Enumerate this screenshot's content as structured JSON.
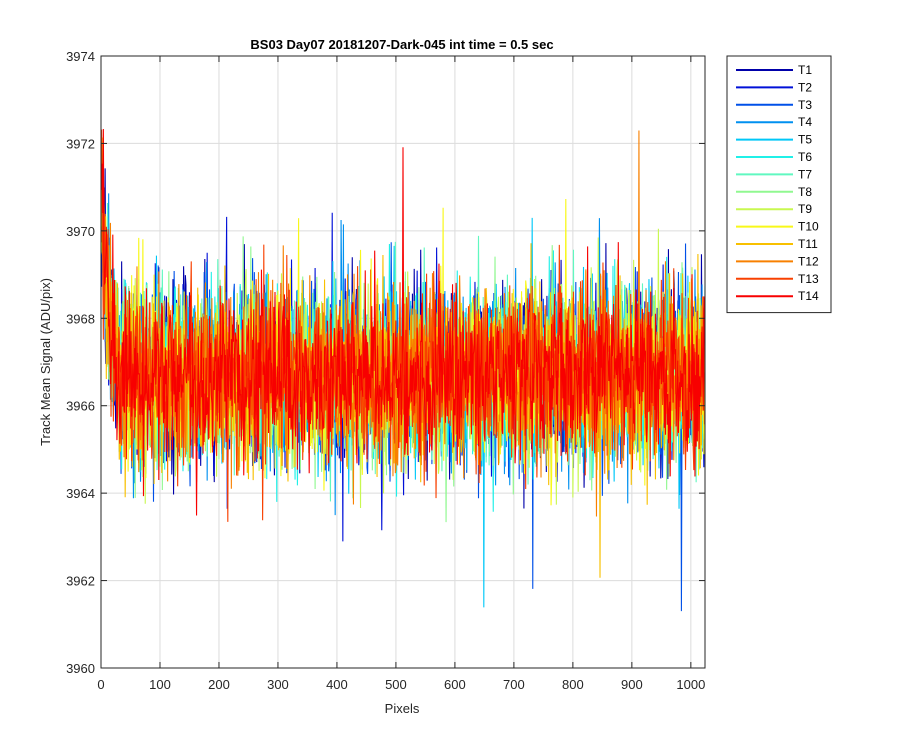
{
  "chart_data": {
    "type": "line",
    "title": "BS03 Day07 20181207-Dark-045 int time = 0.5 sec",
    "xlabel": "Pixels",
    "ylabel": "Track Mean Signal (ADU/pix)",
    "xlim": [
      0,
      1024
    ],
    "ylim": [
      3960,
      3974
    ],
    "xticks": [
      0,
      100,
      200,
      300,
      400,
      500,
      600,
      700,
      800,
      900,
      1000
    ],
    "yticks": [
      3960,
      3962,
      3964,
      3966,
      3968,
      3970,
      3972,
      3974
    ],
    "grid": true,
    "legend_position": "outside-top-right",
    "series_summary": {
      "x_start": 1,
      "x_end": 1024,
      "baseline_mean": 3966.7,
      "start_peak": 3972.5,
      "min_observed": 3961.3,
      "max_observed": 3972.5
    },
    "series": [
      {
        "name": "T1",
        "color": "#0000AA"
      },
      {
        "name": "T2",
        "color": "#0010D8"
      },
      {
        "name": "T3",
        "color": "#0050E8"
      },
      {
        "name": "T4",
        "color": "#0090F0"
      },
      {
        "name": "T5",
        "color": "#00C8F8"
      },
      {
        "name": "T6",
        "color": "#20F0E8"
      },
      {
        "name": "T7",
        "color": "#60F8C0"
      },
      {
        "name": "T8",
        "color": "#90F890"
      },
      {
        "name": "T9",
        "color": "#C8F850"
      },
      {
        "name": "T10",
        "color": "#F8F818"
      },
      {
        "name": "T11",
        "color": "#F8C000"
      },
      {
        "name": "T12",
        "color": "#F88000"
      },
      {
        "name": "T13",
        "color": "#F84000"
      },
      {
        "name": "T14",
        "color": "#F80000"
      }
    ]
  }
}
